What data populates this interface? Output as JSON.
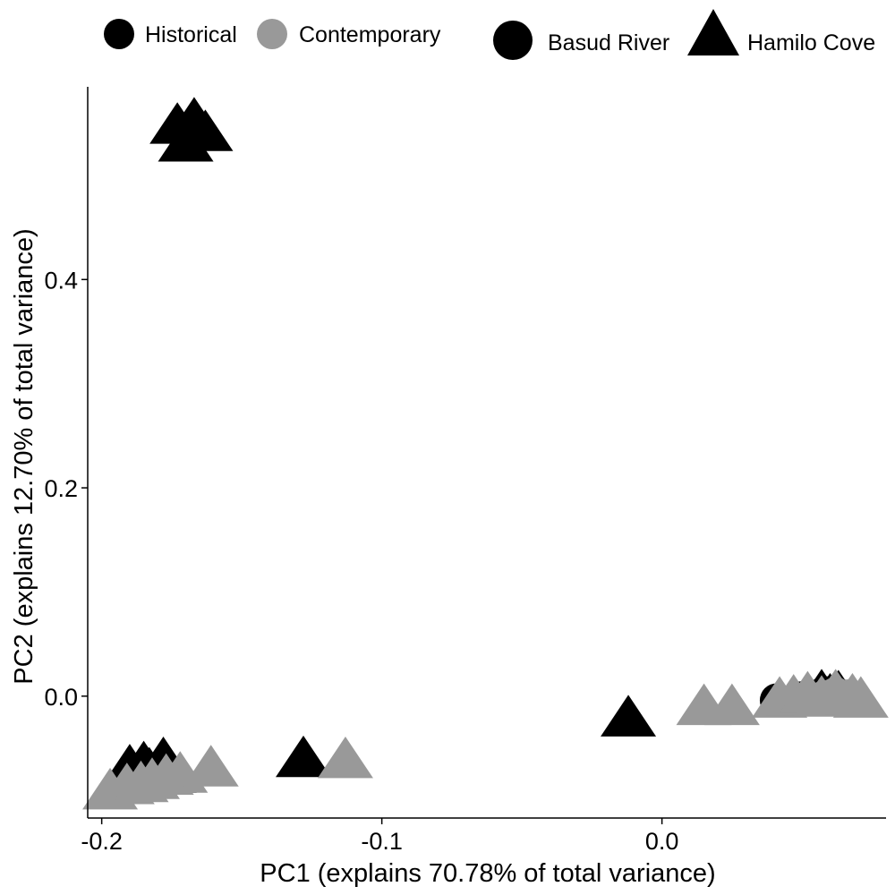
{
  "chart_data": {
    "type": "scatter",
    "title": "",
    "xlabel": "PC1 (explains 70.78% of total variance)",
    "ylabel": "PC2 (explains 12.70% of total variance)",
    "xlim": [
      -0.205,
      0.08
    ],
    "ylim": [
      -0.117,
      0.585
    ],
    "xticks": [
      -0.2,
      -0.1,
      0.0
    ],
    "xtick_labels": [
      "-0.2",
      "-0.1",
      "0.0"
    ],
    "yticks": [
      0.0,
      0.2,
      0.4
    ],
    "ytick_labels": [
      "0.0",
      "0.2",
      "0.4"
    ],
    "grid": false,
    "legend_position": "top",
    "legend": {
      "color_entries": [
        {
          "label": "Historical",
          "color": "#000000"
        },
        {
          "label": "Contemporary",
          "color": "#999999"
        }
      ],
      "shape_entries": [
        {
          "label": "Basud River",
          "shape": "circle"
        },
        {
          "label": "Hamilo Cove",
          "shape": "triangle"
        }
      ]
    },
    "series": [
      {
        "period": "Historical",
        "location": "Basud River",
        "color": "#000000",
        "shape": "circle",
        "x": [
          0.041,
          0.058,
          0.063,
          0.05
        ],
        "y": [
          -0.004,
          0.003,
          0.001,
          -0.002
        ]
      },
      {
        "period": "Historical",
        "location": "Hamilo Cove",
        "color": "#000000",
        "shape": "triangle",
        "x": [
          -0.173,
          -0.167,
          -0.163,
          -0.17,
          -0.178,
          -0.185,
          -0.19,
          -0.183,
          -0.176,
          -0.128,
          -0.012,
          0.057,
          0.063,
          0.06,
          0.052
        ],
        "y": [
          0.547,
          0.552,
          0.54,
          0.53,
          -0.062,
          -0.066,
          -0.069,
          -0.072,
          -0.076,
          -0.061,
          -0.022,
          0.003,
          0.002,
          -0.001,
          -0.002
        ]
      },
      {
        "period": "Contemporary",
        "location": "Basud River",
        "color": "#999999",
        "shape": "circle",
        "x": [
          0.067,
          0.062,
          0.058
        ],
        "y": [
          0.0,
          0.002,
          -0.001
        ]
      },
      {
        "period": "Contemporary",
        "location": "Hamilo Cove",
        "color": "#999999",
        "shape": "triangle",
        "x": [
          -0.197,
          -0.191,
          -0.186,
          -0.182,
          -0.177,
          -0.172,
          -0.161,
          -0.113,
          0.015,
          0.025,
          0.042,
          0.047,
          0.052,
          0.057,
          0.062,
          0.068,
          0.071
        ],
        "y": [
          -0.092,
          -0.087,
          -0.085,
          -0.082,
          -0.078,
          -0.076,
          -0.07,
          -0.062,
          -0.011,
          -0.011,
          -0.004,
          -0.002,
          0.001,
          -0.003,
          0.003,
          -0.001,
          -0.004
        ]
      }
    ]
  }
}
